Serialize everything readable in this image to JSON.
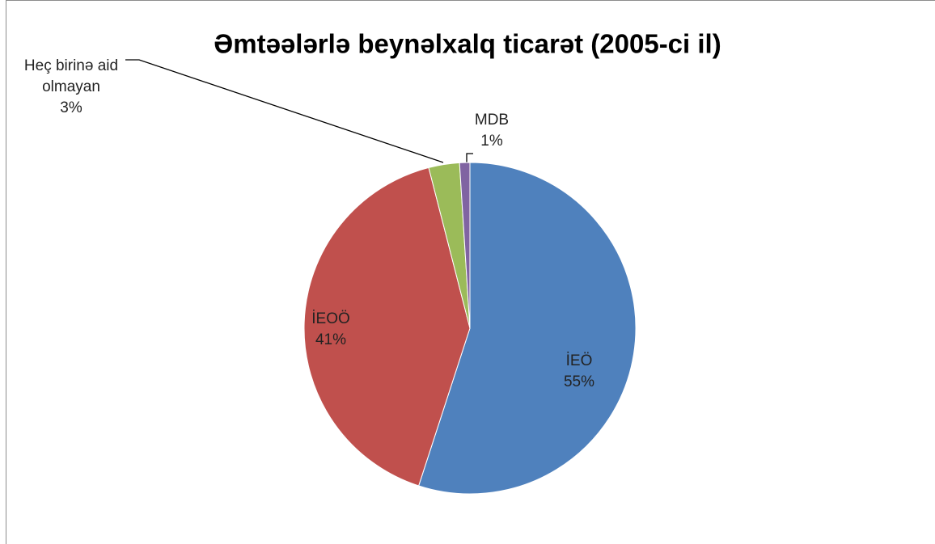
{
  "chart_data": {
    "type": "pie",
    "title": "Əmtəələrlə beynəlxalq ticarət (2005-ci il)",
    "categories": [
      "İEÖ",
      "İEOÖ",
      "Heç birinə aid olmayan",
      "MDB"
    ],
    "values": [
      55,
      41,
      3,
      1
    ],
    "value_labels": [
      "55%",
      "41%",
      "3%",
      "1%"
    ],
    "colors": [
      "#4f81bd",
      "#c0504d",
      "#9bbb59",
      "#8064a2"
    ]
  }
}
